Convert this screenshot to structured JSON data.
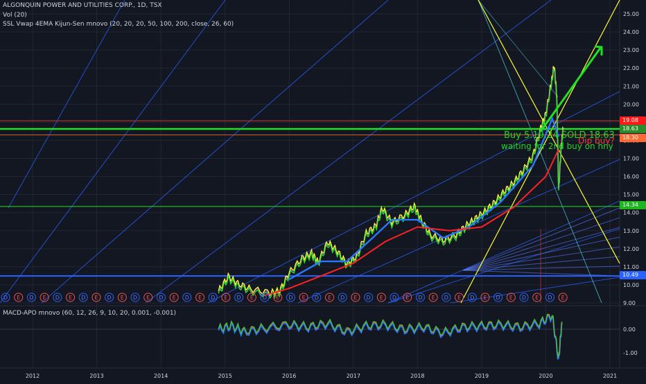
{
  "header": {
    "title": "ALGONQUIN POWER AND UTILITIES CORP., 1D, TSX",
    "volume_label": "Vol (20)",
    "indicator_label": "SSL Vwap 4EMA Kijun-Sen mnovo (20, 20, 20, 50, 100, 200, close, 26, 60)",
    "macd_label": "MACD-APO mnovo (60, 12, 26, 9, 10, 20, 0.001, -0.001)"
  },
  "annotations": {
    "buy_sold": "Buy 5.19.24 SOLD 18.63",
    "waiting": "waiting for 2nd buy on hny",
    "dip_buy": "Dip buy?"
  },
  "price_badges": [
    {
      "label": "19.08",
      "color": "#ff1a1a"
    },
    {
      "label": "18.63",
      "color": "#2a8c2a"
    },
    {
      "label": "18.30",
      "color": "#ff6a33"
    },
    {
      "label": "14.34",
      "color": "#1fb51f"
    },
    {
      "label": "10.49",
      "color": "#2962ff"
    }
  ],
  "colors": {
    "background": "#131722",
    "grid": "#222633",
    "green_line": "#22e022",
    "blue_line": "#2962ff",
    "red_line": "#ff2222",
    "yellow_line": "#ffff33",
    "cyan_line": "#4dd0e1"
  },
  "earnings_marker": "E",
  "dividend_marker": "D",
  "chart_data": {
    "type": "line",
    "title": "ALGONQUIN POWER AND UTILITIES CORP., 1D, TSX",
    "x_ticks": [
      "2012",
      "2013",
      "2014",
      "2015",
      "2016",
      "2017",
      "2018",
      "2019",
      "2020",
      "2021"
    ],
    "y_ticks": [
      "25.00",
      "24.00",
      "23.00",
      "22.00",
      "21.00",
      "20.00",
      "19.00",
      "18.00",
      "17.00",
      "16.00",
      "15.00",
      "14.00",
      "13.00",
      "12.00",
      "11.00",
      "10.00",
      "9.00"
    ],
    "ylim": [
      9,
      25.5
    ],
    "macd_ticks": [
      "0.00",
      "-1.00"
    ],
    "horizontal_levels": [
      18.63,
      14.34,
      10.49,
      19.08,
      18.3
    ],
    "price_series": [
      {
        "x": 2014.9,
        "y": 9.6
      },
      {
        "x": 2015.05,
        "y": 10.4
      },
      {
        "x": 2015.2,
        "y": 10.0
      },
      {
        "x": 2015.4,
        "y": 9.7
      },
      {
        "x": 2015.7,
        "y": 9.5
      },
      {
        "x": 2015.85,
        "y": 9.6
      },
      {
        "x": 2016.0,
        "y": 10.6
      },
      {
        "x": 2016.2,
        "y": 11.4
      },
      {
        "x": 2016.35,
        "y": 11.7
      },
      {
        "x": 2016.45,
        "y": 11.2
      },
      {
        "x": 2016.6,
        "y": 12.3
      },
      {
        "x": 2016.75,
        "y": 11.8
      },
      {
        "x": 2016.9,
        "y": 11.1
      },
      {
        "x": 2017.05,
        "y": 11.5
      },
      {
        "x": 2017.2,
        "y": 12.8
      },
      {
        "x": 2017.35,
        "y": 13.2
      },
      {
        "x": 2017.45,
        "y": 14.2
      },
      {
        "x": 2017.6,
        "y": 13.4
      },
      {
        "x": 2017.8,
        "y": 13.8
      },
      {
        "x": 2017.95,
        "y": 14.3
      },
      {
        "x": 2018.05,
        "y": 13.6
      },
      {
        "x": 2018.2,
        "y": 12.7
      },
      {
        "x": 2018.4,
        "y": 12.4
      },
      {
        "x": 2018.6,
        "y": 12.7
      },
      {
        "x": 2018.75,
        "y": 13.2
      },
      {
        "x": 2018.9,
        "y": 13.6
      },
      {
        "x": 2019.05,
        "y": 14.0
      },
      {
        "x": 2019.2,
        "y": 14.5
      },
      {
        "x": 2019.35,
        "y": 15.1
      },
      {
        "x": 2019.5,
        "y": 15.6
      },
      {
        "x": 2019.65,
        "y": 16.3
      },
      {
        "x": 2019.8,
        "y": 17.1
      },
      {
        "x": 2019.92,
        "y": 18.6
      },
      {
        "x": 2020.0,
        "y": 19.4
      },
      {
        "x": 2020.08,
        "y": 21.0
      },
      {
        "x": 2020.13,
        "y": 22.1
      },
      {
        "x": 2020.17,
        "y": 20.5
      },
      {
        "x": 2020.2,
        "y": 15.2
      },
      {
        "x": 2020.24,
        "y": 17.6
      },
      {
        "x": 2020.27,
        "y": 18.6
      }
    ],
    "ema_red": [
      {
        "x": 2015.6,
        "y": 9.4
      },
      {
        "x": 2016.0,
        "y": 9.8
      },
      {
        "x": 2016.5,
        "y": 10.5
      },
      {
        "x": 2017.0,
        "y": 11.2
      },
      {
        "x": 2017.5,
        "y": 12.4
      },
      {
        "x": 2018.0,
        "y": 13.2
      },
      {
        "x": 2018.5,
        "y": 13.0
      },
      {
        "x": 2019.0,
        "y": 13.2
      },
      {
        "x": 2019.5,
        "y": 14.3
      },
      {
        "x": 2020.0,
        "y": 16.0
      },
      {
        "x": 2020.2,
        "y": 17.5
      }
    ],
    "ema_blue": [
      {
        "x": 2016.0,
        "y": 10.3
      },
      {
        "x": 2016.5,
        "y": 11.3
      },
      {
        "x": 2016.9,
        "y": 11.3
      },
      {
        "x": 2017.3,
        "y": 12.6
      },
      {
        "x": 2017.6,
        "y": 13.6
      },
      {
        "x": 2018.0,
        "y": 13.6
      },
      {
        "x": 2018.4,
        "y": 12.6
      },
      {
        "x": 2018.8,
        "y": 13.2
      },
      {
        "x": 2019.3,
        "y": 14.6
      },
      {
        "x": 2019.8,
        "y": 16.6
      },
      {
        "x": 2020.1,
        "y": 19.2
      },
      {
        "x": 2020.2,
        "y": 18.2
      }
    ],
    "macd_series": [
      {
        "x": 2014.9,
        "y": 0.0
      },
      {
        "x": 2015.1,
        "y": 0.15
      },
      {
        "x": 2015.3,
        "y": -0.1
      },
      {
        "x": 2015.6,
        "y": 0.05
      },
      {
        "x": 2016.0,
        "y": 0.2
      },
      {
        "x": 2016.3,
        "y": 0.1
      },
      {
        "x": 2016.6,
        "y": 0.25
      },
      {
        "x": 2016.9,
        "y": -0.1
      },
      {
        "x": 2017.2,
        "y": 0.15
      },
      {
        "x": 2017.5,
        "y": 0.2
      },
      {
        "x": 2017.8,
        "y": 0.0
      },
      {
        "x": 2018.1,
        "y": 0.1
      },
      {
        "x": 2018.4,
        "y": -0.15
      },
      {
        "x": 2018.7,
        "y": 0.1
      },
      {
        "x": 2019.0,
        "y": 0.15
      },
      {
        "x": 2019.3,
        "y": 0.2
      },
      {
        "x": 2019.6,
        "y": 0.1
      },
      {
        "x": 2019.9,
        "y": 0.25
      },
      {
        "x": 2020.1,
        "y": 0.6
      },
      {
        "x": 2020.2,
        "y": -1.3
      },
      {
        "x": 2020.25,
        "y": 0.3
      }
    ],
    "macd_ylim": [
      -1.6,
      0.7
    ]
  }
}
